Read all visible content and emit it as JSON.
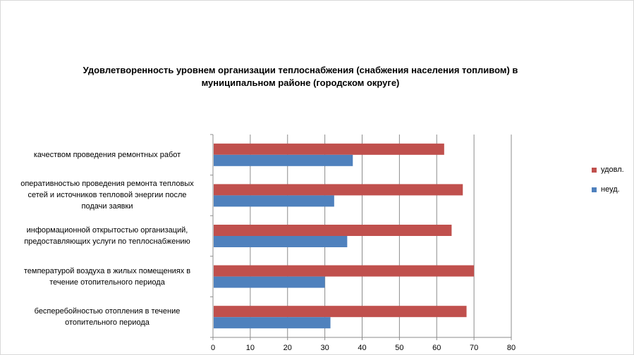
{
  "chart_data": {
    "type": "bar",
    "orientation": "horizontal",
    "title_lines": [
      "Удовлетворенность уровнем организации теплоснабжения (снабжения населения топливом) в",
      "муниципальном районе (городском округе)"
    ],
    "categories": [
      [
        "качеством проведения ремонтных работ"
      ],
      [
        "оперативностью проведения ремонта тепловых",
        "сетей и источников тепловой энергии после",
        "подачи заявки"
      ],
      [
        "информационной открытостью организаций,",
        "предоставляющих услуги по теплоснабжению"
      ],
      [
        "температурой воздуха в жилых помещениях в",
        "течение отопительного периода"
      ],
      [
        "бесперебойностью отопления в течение",
        "отопительного периода"
      ]
    ],
    "series": [
      {
        "name": "удовл.",
        "color": "#c0504d",
        "values": [
          62,
          67,
          64,
          70,
          68
        ]
      },
      {
        "name": "неуд.",
        "color": "#4f81bd",
        "values": [
          37.5,
          32.5,
          36,
          30,
          31.5
        ]
      }
    ],
    "xlim": [
      0,
      80
    ],
    "xticks": [
      "0",
      "10",
      "20",
      "30",
      "40",
      "50",
      "60",
      "70",
      "80"
    ],
    "grid": true,
    "legend_position": "right"
  }
}
